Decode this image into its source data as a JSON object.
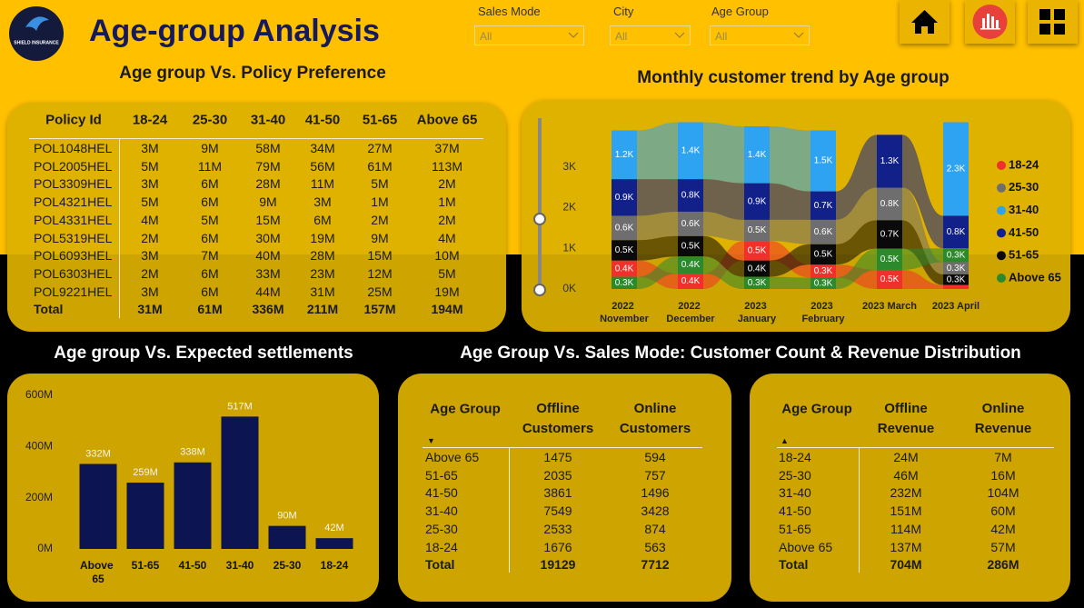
{
  "header": {
    "title": "Age-group Analysis",
    "logo_text": "SHIELD INSURANCE"
  },
  "filters": [
    {
      "label": "Sales Mode",
      "value": "All"
    },
    {
      "label": "City",
      "value": "All"
    },
    {
      "label": "Age Group",
      "value": "All"
    }
  ],
  "policy_table": {
    "title": "Age group Vs. Policy Preference",
    "columns": [
      "Policy Id",
      "18-24",
      "25-30",
      "31-40",
      "41-50",
      "51-65",
      "Above 65"
    ],
    "rows": [
      [
        "POL1048HEL",
        "3M",
        "9M",
        "58M",
        "34M",
        "27M",
        "37M"
      ],
      [
        "POL2005HEL",
        "5M",
        "11M",
        "79M",
        "56M",
        "61M",
        "113M"
      ],
      [
        "POL3309HEL",
        "3M",
        "6M",
        "28M",
        "11M",
        "5M",
        "2M"
      ],
      [
        "POL4321HEL",
        "5M",
        "6M",
        "9M",
        "3M",
        "1M",
        "1M"
      ],
      [
        "POL4331HEL",
        "4M",
        "5M",
        "15M",
        "6M",
        "2M",
        "2M"
      ],
      [
        "POL5319HEL",
        "2M",
        "6M",
        "30M",
        "19M",
        "9M",
        "4M"
      ],
      [
        "POL6093HEL",
        "3M",
        "7M",
        "40M",
        "28M",
        "15M",
        "10M"
      ],
      [
        "POL6303HEL",
        "2M",
        "6M",
        "33M",
        "23M",
        "12M",
        "5M"
      ],
      [
        "POL9221HEL",
        "3M",
        "6M",
        "44M",
        "31M",
        "25M",
        "19M"
      ]
    ],
    "total": [
      "Total",
      "31M",
      "61M",
      "336M",
      "211M",
      "157M",
      "194M"
    ]
  },
  "chart_data": [
    {
      "type": "ribbon",
      "title": "Monthly customer trend by Age group",
      "categories": [
        "2022 November",
        "2022 December",
        "2023 January",
        "2023 February",
        "2023 March",
        "2023 April"
      ],
      "ylim": [
        0,
        4200
      ],
      "yticks": [
        {
          "value": 0,
          "label": "0K"
        },
        {
          "value": 1000,
          "label": "1K"
        },
        {
          "value": 2000,
          "label": "2K"
        },
        {
          "value": 3000,
          "label": "3K"
        }
      ],
      "grid": false,
      "legend": "right",
      "series": [
        {
          "name": "18-24",
          "color": "#f0302a",
          "values": [
            400,
            380,
            480,
            320,
            470,
            100
          ],
          "value_labels": [
            "0.4K",
            "0.4K",
            "0.5K",
            "0.3K",
            "0.5K",
            null
          ]
        },
        {
          "name": "25-30",
          "color": "#6e6e6e",
          "values": [
            600,
            600,
            520,
            600,
            800,
            300
          ],
          "value_labels": [
            "0.6K",
            "0.6K",
            "0.5K",
            "0.6K",
            "0.8K",
            "0.3K"
          ]
        },
        {
          "name": "31-40",
          "color": "#2ea3f2",
          "values": [
            1200,
            1400,
            1400,
            1500,
            null,
            2300
          ],
          "value_labels": [
            "1.2K",
            "1.4K",
            "1.4K",
            "1.5K",
            null,
            "2.3K"
          ]
        },
        {
          "name": "41-50",
          "color": "#12208a",
          "values": [
            900,
            800,
            900,
            700,
            1300,
            800
          ],
          "value_labels": [
            "0.9K",
            "0.8K",
            "0.9K",
            "0.7K",
            "1.3K",
            "0.8K"
          ]
        },
        {
          "name": "51-65",
          "color": "#0a0a0a",
          "values": [
            500,
            500,
            400,
            500,
            700,
            260
          ],
          "value_labels": [
            "0.5K",
            "0.5K",
            "0.4K",
            "0.5K",
            "0.7K",
            "0.3K"
          ]
        },
        {
          "name": "Above 65",
          "color": "#2c8a2c",
          "values": [
            300,
            420,
            300,
            280,
            520,
            340
          ],
          "value_labels": [
            "0.3K",
            "0.4K",
            "0.3K",
            "0.3K",
            "0.5K",
            "0.3K"
          ]
        }
      ]
    },
    {
      "type": "bar",
      "title": "Age group Vs. Expected settlements",
      "color": "#0d1452",
      "categories": [
        "Above 65",
        "51-65",
        "41-50",
        "31-40",
        "25-30",
        "18-24"
      ],
      "values": [
        332000000,
        259000000,
        338000000,
        517000000,
        90000000,
        42000000
      ],
      "value_labels": [
        "332M",
        "259M",
        "338M",
        "517M",
        "90M",
        "42M"
      ],
      "ylim": [
        0,
        600000000
      ],
      "yticks": [
        {
          "value": 0,
          "label": "0M"
        },
        {
          "value": 200000000,
          "label": "200M"
        },
        {
          "value": 400000000,
          "label": "400M"
        },
        {
          "value": 600000000,
          "label": "600M"
        }
      ],
      "grid": false
    }
  ],
  "sales_mode_title": "Age Group Vs. Sales Mode: Customer Count & Revenue Distribution",
  "customers_table": {
    "columns": [
      "Age Group",
      "Offline Customers",
      "Online Customers"
    ],
    "rows": [
      [
        "Above 65",
        "1475",
        "594"
      ],
      [
        "51-65",
        "2035",
        "757"
      ],
      [
        "41-50",
        "3861",
        "1496"
      ],
      [
        "31-40",
        "7549",
        "3428"
      ],
      [
        "25-30",
        "2533",
        "874"
      ],
      [
        "18-24",
        "1676",
        "563"
      ]
    ],
    "total": [
      "Total",
      "19129",
      "7712"
    ]
  },
  "revenue_table": {
    "columns": [
      "Age Group",
      "Offline Revenue",
      "Online Revenue"
    ],
    "rows": [
      [
        "18-24",
        "24M",
        "7M"
      ],
      [
        "25-30",
        "46M",
        "16M"
      ],
      [
        "31-40",
        "232M",
        "104M"
      ],
      [
        "41-50",
        "151M",
        "60M"
      ],
      [
        "51-65",
        "114M",
        "42M"
      ],
      [
        "Above 65",
        "137M",
        "57M"
      ]
    ],
    "total": [
      "Total",
      "704M",
      "286M"
    ]
  }
}
